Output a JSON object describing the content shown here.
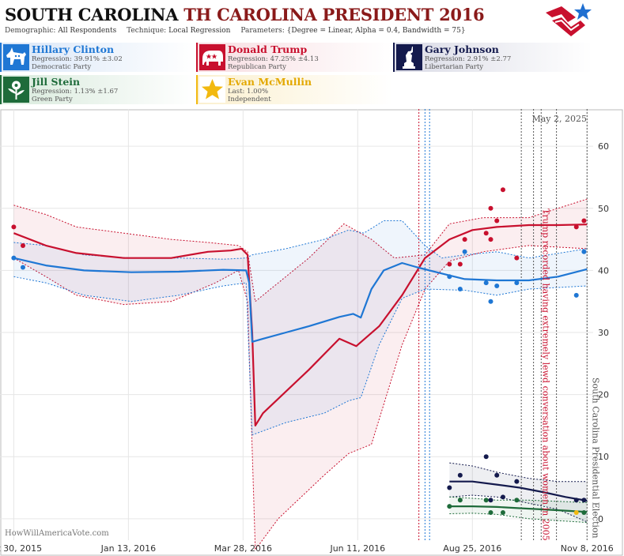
{
  "header": {
    "title_state": "SOUTH CAROLINA",
    "title_race": "TH CAROLINA PRESIDENT 2016",
    "demographic_label": "Demographic:",
    "demographic": "All Respondents",
    "technique_label": "Technique:",
    "technique": "Local Regression",
    "parameters_label": "Parameters:",
    "parameters": "{Degree = Linear, Alpha = 0.4, Bandwidth = 75}"
  },
  "candidates": [
    {
      "name": "Hillary Clinton",
      "line2": "Regression: 39.91% ±3.02",
      "line3": "Democratic Party",
      "color": "#1f77d4",
      "icon": "donkey-icon"
    },
    {
      "name": "Donald Trump",
      "line2": "Regression: 47.25% ±4.13",
      "line3": "Republican Party",
      "color": "#c8102e",
      "icon": "elephant-icon"
    },
    {
      "name": "Gary Johnson",
      "line2": "Regression: 2.91% ±2.77",
      "line3": "Libertarian Party",
      "color": "#141a4d",
      "icon": "liberty-statue-icon"
    },
    {
      "name": "Jill Stein",
      "line2": "Regression: 1.13% ±1.67",
      "line3": "Green Party",
      "color": "#1e6b3a",
      "icon": "rose-icon"
    },
    {
      "name": "Evan McMullin",
      "line2": "Last: 1.00%",
      "line3": "Independent",
      "color": "#f2b90f",
      "icon": "star-icon"
    }
  ],
  "chart_data": {
    "type": "line",
    "x_axis": {
      "type": "date",
      "range": [
        "2015-10-21",
        "2016-11-12"
      ],
      "ticks": [
        "Oct 30, 2015",
        "Jan 13, 2016",
        "Mar 28, 2016",
        "Jun 11, 2016",
        "Aug 25, 2016",
        "Nov 8, 2016"
      ]
    },
    "y_axis": {
      "range": [
        -6,
        66
      ],
      "ticks": [
        0,
        10,
        20,
        30,
        40,
        50,
        60
      ],
      "position": "right"
    },
    "grid": true,
    "date_label": "May 2, 2025",
    "watermark": "HowWillAmericaVote.com",
    "annotations": [
      {
        "date": "2016-10-07",
        "text": "Trump recorded having extremely lewd conversation about women in 2005",
        "color": "#c8102e"
      },
      {
        "date": "2016-11-08",
        "text": "South Carolina Presidential Election",
        "color": "#555555"
      }
    ],
    "event_lines": [
      {
        "date": "2016-07-21",
        "color": "#c8102e"
      },
      {
        "date": "2016-07-25",
        "color": "#1f77d4"
      },
      {
        "date": "2016-07-28",
        "color": "#1f77d4"
      },
      {
        "date": "2016-09-26",
        "color": "#555555"
      },
      {
        "date": "2016-10-04",
        "color": "#555555"
      },
      {
        "date": "2016-10-09",
        "color": "#555555"
      },
      {
        "date": "2016-10-19",
        "color": "#555555"
      },
      {
        "date": "2016-11-08",
        "color": "#555555"
      }
    ],
    "series": [
      {
        "name": "Donald Trump",
        "color": "#c8102e",
        "trend": [
          [
            "2015-10-30",
            46
          ],
          [
            "2015-11-20",
            44
          ],
          [
            "2015-12-10",
            42.8
          ],
          [
            "2016-01-10",
            42
          ],
          [
            "2016-02-10",
            42
          ],
          [
            "2016-03-05",
            43
          ],
          [
            "2016-03-20",
            43.2
          ],
          [
            "2016-03-27",
            43.5
          ],
          [
            "2016-03-31",
            42.5
          ],
          [
            "2016-04-03",
            30
          ],
          [
            "2016-04-05",
            15
          ],
          [
            "2016-04-10",
            17
          ],
          [
            "2016-05-10",
            24
          ],
          [
            "2016-05-30",
            29
          ],
          [
            "2016-06-10",
            27.8
          ],
          [
            "2016-06-25",
            31
          ],
          [
            "2016-07-10",
            36
          ],
          [
            "2016-07-25",
            42
          ],
          [
            "2016-08-10",
            45
          ],
          [
            "2016-08-25",
            46.5
          ],
          [
            "2016-09-10",
            47
          ],
          [
            "2016-10-01",
            47.3
          ],
          [
            "2016-10-20",
            47.3
          ],
          [
            "2016-11-08",
            47.4
          ]
        ],
        "upper": [
          [
            "2015-10-30",
            50.5
          ],
          [
            "2015-11-20",
            49
          ],
          [
            "2015-12-10",
            47
          ],
          [
            "2016-01-10",
            46
          ],
          [
            "2016-02-10",
            45
          ],
          [
            "2016-03-05",
            44.5
          ],
          [
            "2016-03-25",
            44
          ],
          [
            "2016-03-31",
            43
          ],
          [
            "2016-04-05",
            35
          ],
          [
            "2016-05-10",
            42
          ],
          [
            "2016-06-02",
            47.5
          ],
          [
            "2016-06-20",
            45
          ],
          [
            "2016-07-05",
            42
          ],
          [
            "2016-07-25",
            42.5
          ],
          [
            "2016-08-10",
            47.5
          ],
          [
            "2016-09-01",
            48.5
          ],
          [
            "2016-10-01",
            48.5
          ],
          [
            "2016-11-08",
            51.5
          ]
        ],
        "lower": [
          [
            "2015-10-30",
            42
          ],
          [
            "2015-11-20",
            39
          ],
          [
            "2015-12-10",
            36
          ],
          [
            "2016-01-10",
            34.5
          ],
          [
            "2016-02-10",
            35
          ],
          [
            "2016-03-10",
            38
          ],
          [
            "2016-03-25",
            40
          ],
          [
            "2016-03-31",
            35
          ],
          [
            "2016-04-05",
            -5
          ],
          [
            "2016-04-20",
            0
          ],
          [
            "2016-05-20",
            7
          ],
          [
            "2016-06-05",
            10.5
          ],
          [
            "2016-06-20",
            12
          ],
          [
            "2016-07-10",
            28
          ],
          [
            "2016-07-25",
            37
          ],
          [
            "2016-08-10",
            41.5
          ],
          [
            "2016-09-01",
            43
          ],
          [
            "2016-10-01",
            44
          ],
          [
            "2016-11-08",
            43.5
          ]
        ],
        "points": [
          [
            "2015-10-30",
            47
          ],
          [
            "2015-11-05",
            44
          ],
          [
            "2016-08-10",
            41
          ],
          [
            "2016-08-17",
            41
          ],
          [
            "2016-08-20",
            45
          ],
          [
            "2016-09-03",
            46
          ],
          [
            "2016-09-06",
            45
          ],
          [
            "2016-09-06",
            50
          ],
          [
            "2016-09-10",
            48
          ],
          [
            "2016-09-14",
            53
          ],
          [
            "2016-09-23",
            42
          ],
          [
            "2016-11-01",
            47
          ],
          [
            "2016-11-06",
            48
          ]
        ]
      },
      {
        "name": "Hillary Clinton",
        "color": "#1f77d4",
        "trend": [
          [
            "2015-10-30",
            42
          ],
          [
            "2015-11-20",
            40.8
          ],
          [
            "2015-12-15",
            40
          ],
          [
            "2016-01-15",
            39.7
          ],
          [
            "2016-02-15",
            39.8
          ],
          [
            "2016-03-15",
            40.1
          ],
          [
            "2016-03-30",
            40
          ],
          [
            "2016-04-01",
            38
          ],
          [
            "2016-04-03",
            28.5
          ],
          [
            "2016-04-10",
            29
          ],
          [
            "2016-04-25",
            30
          ],
          [
            "2016-05-10",
            31
          ],
          [
            "2016-05-30",
            32.5
          ],
          [
            "2016-06-08",
            33
          ],
          [
            "2016-06-13",
            32.4
          ],
          [
            "2016-06-20",
            37
          ],
          [
            "2016-06-28",
            40
          ],
          [
            "2016-07-10",
            41.2
          ],
          [
            "2016-07-20",
            40.5
          ],
          [
            "2016-08-05",
            39.5
          ],
          [
            "2016-08-20",
            38.6
          ],
          [
            "2016-09-10",
            38.4
          ],
          [
            "2016-10-01",
            38.4
          ],
          [
            "2016-10-20",
            39
          ],
          [
            "2016-11-08",
            40.2
          ]
        ],
        "upper": [
          [
            "2015-10-30",
            44.5
          ],
          [
            "2015-11-20",
            44
          ],
          [
            "2015-12-15",
            42.5
          ],
          [
            "2016-01-15",
            42
          ],
          [
            "2016-02-15",
            42
          ],
          [
            "2016-03-15",
            41.8
          ],
          [
            "2016-03-30",
            42
          ],
          [
            "2016-04-03",
            42.5
          ],
          [
            "2016-04-25",
            43.5
          ],
          [
            "2016-05-20",
            45
          ],
          [
            "2016-06-05",
            46.5
          ],
          [
            "2016-06-15",
            46
          ],
          [
            "2016-06-28",
            48
          ],
          [
            "2016-07-10",
            48
          ],
          [
            "2016-07-25",
            44
          ],
          [
            "2016-08-05",
            42
          ],
          [
            "2016-08-20",
            42.5
          ],
          [
            "2016-09-10",
            43
          ],
          [
            "2016-10-01",
            42
          ],
          [
            "2016-11-08",
            43.5
          ]
        ],
        "lower": [
          [
            "2015-10-30",
            39
          ],
          [
            "2015-11-20",
            38
          ],
          [
            "2015-12-15",
            36
          ],
          [
            "2016-01-15",
            35
          ],
          [
            "2016-02-15",
            36
          ],
          [
            "2016-03-15",
            37.5
          ],
          [
            "2016-03-30",
            38
          ],
          [
            "2016-04-03",
            13.5
          ],
          [
            "2016-04-25",
            15.5
          ],
          [
            "2016-05-20",
            17
          ],
          [
            "2016-06-05",
            19
          ],
          [
            "2016-06-13",
            19.5
          ],
          [
            "2016-06-25",
            28
          ],
          [
            "2016-07-10",
            35.5
          ],
          [
            "2016-07-25",
            37
          ],
          [
            "2016-08-20",
            36.8
          ],
          [
            "2016-09-10",
            36
          ],
          [
            "2016-10-01",
            37
          ],
          [
            "2016-11-08",
            37.5
          ]
        ],
        "points": [
          [
            "2015-10-30",
            42
          ],
          [
            "2015-11-05",
            40.5
          ],
          [
            "2016-08-10",
            39
          ],
          [
            "2016-08-17",
            37
          ],
          [
            "2016-08-20",
            43
          ],
          [
            "2016-09-03",
            38
          ],
          [
            "2016-09-06",
            35
          ],
          [
            "2016-09-10",
            37.5
          ],
          [
            "2016-09-23",
            38
          ],
          [
            "2016-11-01",
            36
          ],
          [
            "2016-11-06",
            43
          ]
        ]
      },
      {
        "name": "Gary Johnson",
        "color": "#141a4d",
        "trend": [
          [
            "2016-08-10",
            6
          ],
          [
            "2016-08-25",
            6
          ],
          [
            "2016-09-10",
            5.5
          ],
          [
            "2016-09-25",
            5
          ],
          [
            "2016-10-10",
            4.3
          ],
          [
            "2016-10-25",
            3.5
          ],
          [
            "2016-11-08",
            2.9
          ]
        ],
        "upper": [
          [
            "2016-08-10",
            9
          ],
          [
            "2016-08-25",
            8.5
          ],
          [
            "2016-09-10",
            7.5
          ],
          [
            "2016-10-01",
            6.5
          ],
          [
            "2016-10-20",
            6
          ],
          [
            "2016-11-08",
            6
          ]
        ],
        "lower": [
          [
            "2016-08-10",
            3.5
          ],
          [
            "2016-08-25",
            3.8
          ],
          [
            "2016-09-10",
            3.5
          ],
          [
            "2016-10-01",
            2.5
          ],
          [
            "2016-10-20",
            1.5
          ],
          [
            "2016-11-08",
            -0.5
          ]
        ],
        "points": [
          [
            "2016-08-10",
            5
          ],
          [
            "2016-08-17",
            7
          ],
          [
            "2016-09-03",
            10
          ],
          [
            "2016-09-06",
            3
          ],
          [
            "2016-09-10",
            7
          ],
          [
            "2016-09-14",
            3.5
          ],
          [
            "2016-09-23",
            6
          ],
          [
            "2016-11-01",
            3
          ],
          [
            "2016-11-06",
            3
          ]
        ]
      },
      {
        "name": "Jill Stein",
        "color": "#1e6b3a",
        "trend": [
          [
            "2016-08-10",
            2
          ],
          [
            "2016-08-25",
            2
          ],
          [
            "2016-09-10",
            1.9
          ],
          [
            "2016-09-25",
            1.7
          ],
          [
            "2016-10-10",
            1.5
          ],
          [
            "2016-10-25",
            1.3
          ],
          [
            "2016-11-08",
            1.1
          ]
        ],
        "upper": [
          [
            "2016-08-10",
            3.5
          ],
          [
            "2016-08-25",
            3.3
          ],
          [
            "2016-09-10",
            3
          ],
          [
            "2016-10-01",
            3
          ],
          [
            "2016-10-20",
            2.8
          ],
          [
            "2016-11-08",
            2.6
          ]
        ],
        "lower": [
          [
            "2016-08-10",
            0.8
          ],
          [
            "2016-08-25",
            0.9
          ],
          [
            "2016-09-10",
            0.7
          ],
          [
            "2016-10-01",
            0
          ],
          [
            "2016-10-20",
            -0.3
          ],
          [
            "2016-11-08",
            -0.6
          ]
        ],
        "points": [
          [
            "2016-08-10",
            2
          ],
          [
            "2016-08-17",
            3
          ],
          [
            "2016-09-03",
            3
          ],
          [
            "2016-09-06",
            1
          ],
          [
            "2016-09-14",
            1
          ],
          [
            "2016-09-23",
            3
          ],
          [
            "2016-11-06",
            1
          ]
        ]
      },
      {
        "name": "Evan McMullin",
        "color": "#f2b90f",
        "points": [
          [
            "2016-11-01",
            1
          ]
        ]
      }
    ]
  }
}
